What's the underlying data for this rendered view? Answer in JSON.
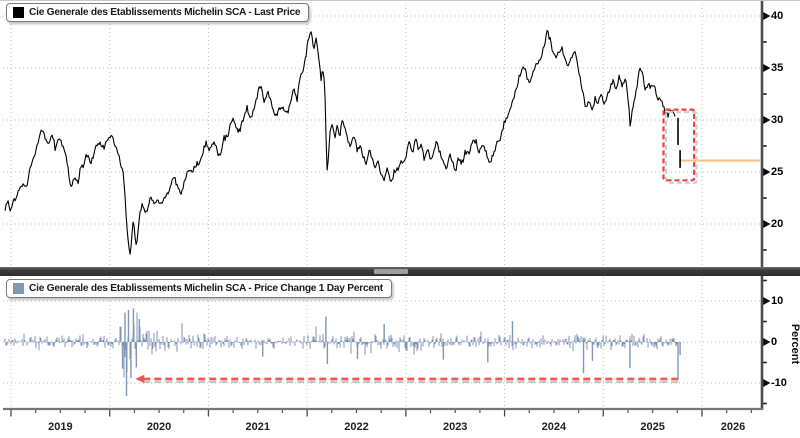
{
  "top_panel": {
    "legend_label": "Cie Generale des Etablissements Michelin SCA - Last Price",
    "swatch_color": "#000000"
  },
  "bottom_panel": {
    "legend_label": "Cie Generale des Etablissements Michelin SCA - Price Change 1 Day Percent",
    "swatch_color": "#7f96b5",
    "axis_title": "Percent"
  },
  "x_axis": {
    "year_labels": [
      "2019",
      "2020",
      "2021",
      "2022",
      "2023",
      "2024",
      "2025",
      "2026"
    ],
    "minor_tick_interval_years": 0.25
  },
  "chart_data": [
    {
      "type": "line",
      "name": "Cie Generale des Etablissements Michelin SCA - Last Price",
      "color": "#000000",
      "x_unit": "decimal_year",
      "x_range": [
        2018.94,
        2026.62
      ],
      "ylim": [
        18.4,
        40.8
      ],
      "y_ticks": [
        40,
        35,
        30,
        25,
        20
      ],
      "minor_y_ticks": [
        37.5,
        32.5,
        27.5,
        22.5,
        17.5
      ],
      "grid": "dotted",
      "noise_amplitude": 0.45,
      "last_price": 26.1,
      "anchors": [
        [
          2018.94,
          21.4
        ],
        [
          2018.97,
          21.9
        ],
        [
          2018.99,
          20.9
        ],
        [
          2019.03,
          22.4
        ],
        [
          2019.09,
          23.6
        ],
        [
          2019.13,
          24.2
        ],
        [
          2019.16,
          23.6
        ],
        [
          2019.2,
          25.3
        ],
        [
          2019.25,
          27.0
        ],
        [
          2019.3,
          29.3
        ],
        [
          2019.33,
          28.3
        ],
        [
          2019.37,
          27.3
        ],
        [
          2019.42,
          28.8
        ],
        [
          2019.45,
          27.6
        ],
        [
          2019.48,
          28.4
        ],
        [
          2019.52,
          27.5
        ],
        [
          2019.56,
          26.2
        ],
        [
          2019.6,
          23.9
        ],
        [
          2019.64,
          24.7
        ],
        [
          2019.68,
          23.9
        ],
        [
          2019.72,
          25.6
        ],
        [
          2019.76,
          26.7
        ],
        [
          2019.8,
          26.1
        ],
        [
          2019.85,
          27.4
        ],
        [
          2019.9,
          28.2
        ],
        [
          2019.94,
          27.6
        ],
        [
          2019.98,
          27.9
        ],
        [
          2020.02,
          28.4
        ],
        [
          2020.06,
          27.8
        ],
        [
          2020.1,
          26.6
        ],
        [
          2020.14,
          24.5
        ],
        [
          2020.17,
          20.0
        ],
        [
          2020.21,
          16.6
        ],
        [
          2020.24,
          20.5
        ],
        [
          2020.27,
          17.9
        ],
        [
          2020.3,
          20.8
        ],
        [
          2020.33,
          22.3
        ],
        [
          2020.37,
          21.5
        ],
        [
          2020.41,
          22.8
        ],
        [
          2020.45,
          21.8
        ],
        [
          2020.49,
          22.6
        ],
        [
          2020.53,
          21.9
        ],
        [
          2020.57,
          22.8
        ],
        [
          2020.61,
          23.8
        ],
        [
          2020.65,
          24.6
        ],
        [
          2020.69,
          23.2
        ],
        [
          2020.72,
          22.5
        ],
        [
          2020.76,
          24.3
        ],
        [
          2020.8,
          25.6
        ],
        [
          2020.84,
          25.1
        ],
        [
          2020.88,
          26.0
        ],
        [
          2020.92,
          26.4
        ],
        [
          2020.97,
          27.5
        ],
        [
          2021.01,
          26.9
        ],
        [
          2021.05,
          27.7
        ],
        [
          2021.09,
          26.6
        ],
        [
          2021.13,
          27.4
        ],
        [
          2021.17,
          27.9
        ],
        [
          2021.21,
          28.9
        ],
        [
          2021.26,
          29.9
        ],
        [
          2021.3,
          29.2
        ],
        [
          2021.35,
          30.4
        ],
        [
          2021.39,
          31.3
        ],
        [
          2021.43,
          30.2
        ],
        [
          2021.47,
          31.4
        ],
        [
          2021.51,
          32.6
        ],
        [
          2021.54,
          33.1
        ],
        [
          2021.57,
          31.9
        ],
        [
          2021.6,
          32.5
        ],
        [
          2021.63,
          31.4
        ],
        [
          2021.67,
          30.2
        ],
        [
          2021.72,
          30.9
        ],
        [
          2021.76,
          31.6
        ],
        [
          2021.8,
          30.6
        ],
        [
          2021.84,
          31.9
        ],
        [
          2021.87,
          33.2
        ],
        [
          2021.9,
          32.1
        ],
        [
          2021.94,
          34.1
        ],
        [
          2021.98,
          35.6
        ],
        [
          2022.01,
          37.1
        ],
        [
          2022.04,
          38.4
        ],
        [
          2022.07,
          37.0
        ],
        [
          2022.09,
          37.8
        ],
        [
          2022.12,
          35.8
        ],
        [
          2022.14,
          34.3
        ],
        [
          2022.16,
          35.1
        ],
        [
          2022.18,
          32.8
        ],
        [
          2022.2,
          24.9
        ],
        [
          2022.23,
          28.6
        ],
        [
          2022.26,
          29.4
        ],
        [
          2022.28,
          28.1
        ],
        [
          2022.3,
          29.6
        ],
        [
          2022.33,
          28.4
        ],
        [
          2022.35,
          29.8
        ],
        [
          2022.38,
          28.9
        ],
        [
          2022.41,
          28.1
        ],
        [
          2022.44,
          26.9
        ],
        [
          2022.47,
          28.2
        ],
        [
          2022.51,
          26.7
        ],
        [
          2022.54,
          27.7
        ],
        [
          2022.57,
          26.3
        ],
        [
          2022.6,
          25.9
        ],
        [
          2022.63,
          27.3
        ],
        [
          2022.66,
          26.7
        ],
        [
          2022.69,
          25.0
        ],
        [
          2022.72,
          25.9
        ],
        [
          2022.75,
          24.9
        ],
        [
          2022.78,
          23.9
        ],
        [
          2022.81,
          24.9
        ],
        [
          2022.84,
          24.3
        ],
        [
          2022.88,
          25.4
        ],
        [
          2022.92,
          25.1
        ],
        [
          2022.96,
          26.1
        ],
        [
          2023.0,
          26.3
        ],
        [
          2023.04,
          27.8
        ],
        [
          2023.07,
          27.1
        ],
        [
          2023.1,
          27.9
        ],
        [
          2023.13,
          26.9
        ],
        [
          2023.16,
          27.6
        ],
        [
          2023.19,
          26.6
        ],
        [
          2023.22,
          27.3
        ],
        [
          2023.25,
          26.4
        ],
        [
          2023.28,
          27.1
        ],
        [
          2023.31,
          27.7
        ],
        [
          2023.35,
          26.9
        ],
        [
          2023.38,
          26.1
        ],
        [
          2023.41,
          25.4
        ],
        [
          2023.44,
          26.3
        ],
        [
          2023.47,
          25.7
        ],
        [
          2023.5,
          25.2
        ],
        [
          2023.53,
          26.1
        ],
        [
          2023.56,
          25.6
        ],
        [
          2023.59,
          26.6
        ],
        [
          2023.62,
          27.4
        ],
        [
          2023.65,
          26.9
        ],
        [
          2023.68,
          27.6
        ],
        [
          2023.71,
          28.1
        ],
        [
          2023.74,
          27.3
        ],
        [
          2023.77,
          27.9
        ],
        [
          2023.8,
          27.1
        ],
        [
          2023.83,
          26.3
        ],
        [
          2023.86,
          25.7
        ],
        [
          2023.89,
          26.6
        ],
        [
          2023.92,
          27.6
        ],
        [
          2023.95,
          28.4
        ],
        [
          2023.99,
          29.3
        ],
        [
          2024.02,
          30.1
        ],
        [
          2024.05,
          31.0
        ],
        [
          2024.08,
          32.2
        ],
        [
          2024.12,
          33.4
        ],
        [
          2024.16,
          34.3
        ],
        [
          2024.2,
          34.9
        ],
        [
          2024.24,
          33.9
        ],
        [
          2024.28,
          34.6
        ],
        [
          2024.32,
          35.4
        ],
        [
          2024.36,
          36.3
        ],
        [
          2024.4,
          37.3
        ],
        [
          2024.43,
          38.2
        ],
        [
          2024.46,
          37.6
        ],
        [
          2024.49,
          36.4
        ],
        [
          2024.52,
          35.6
        ],
        [
          2024.55,
          36.8
        ],
        [
          2024.58,
          37.4
        ],
        [
          2024.61,
          36.2
        ],
        [
          2024.64,
          35.1
        ],
        [
          2024.67,
          35.9
        ],
        [
          2024.71,
          36.7
        ],
        [
          2024.74,
          35.3
        ],
        [
          2024.77,
          33.9
        ],
        [
          2024.8,
          32.4
        ],
        [
          2024.83,
          31.2
        ],
        [
          2024.86,
          31.8
        ],
        [
          2024.89,
          31.1
        ],
        [
          2024.92,
          32.1
        ],
        [
          2024.95,
          31.4
        ],
        [
          2024.98,
          32.2
        ],
        [
          2025.01,
          31.6
        ],
        [
          2025.04,
          32.4
        ],
        [
          2025.07,
          33.1
        ],
        [
          2025.1,
          33.6
        ],
        [
          2025.13,
          32.9
        ],
        [
          2025.16,
          33.9
        ],
        [
          2025.19,
          33.3
        ],
        [
          2025.22,
          34.2
        ],
        [
          2025.25,
          32.3
        ],
        [
          2025.27,
          29.6
        ],
        [
          2025.3,
          31.4
        ],
        [
          2025.33,
          32.9
        ],
        [
          2025.36,
          34.3
        ],
        [
          2025.38,
          34.9
        ],
        [
          2025.41,
          34.1
        ],
        [
          2025.43,
          33.4
        ],
        [
          2025.46,
          34.0
        ],
        [
          2025.49,
          32.9
        ],
        [
          2025.52,
          33.4
        ],
        [
          2025.55,
          32.1
        ],
        [
          2025.58,
          32.5
        ],
        [
          2025.61,
          31.4
        ],
        [
          2025.64,
          30.9
        ],
        [
          2025.67,
          31.3
        ],
        [
          2025.7,
          30.6
        ],
        [
          2025.73,
          30.8
        ]
      ],
      "gap_bars": [
        {
          "t": 2025.757,
          "high": 30.2,
          "low": 27.6
        },
        {
          "t": 2025.778,
          "high": 27.1,
          "low": 25.4
        }
      ],
      "annotations": {
        "highlight_box": {
          "t_from": 2025.61,
          "t_to": 2025.92,
          "price_top": 31.0,
          "price_bottom": 24.2,
          "color": "#ee4238",
          "style": "dashed"
        },
        "last_price_line": {
          "price": 26.1,
          "t_from": 2025.78,
          "color": "#f2c488",
          "style": "solid"
        }
      }
    },
    {
      "type": "bar",
      "name": "Cie Generale des Etablissements Michelin SCA - Price Change 1 Day Percent",
      "color": "#7f96b5",
      "ylabel": "Percent",
      "x_unit": "decimal_year",
      "x_range": [
        2018.94,
        2026.62
      ],
      "ylim": [
        -15.6,
        15.7
      ],
      "y_ticks": [
        10,
        0,
        -10
      ],
      "minor_y_ticks": [
        15,
        5,
        -5,
        -15
      ],
      "grid": "dotted",
      "volatility_profile": [
        {
          "from": 2018.94,
          "to": 2020.1,
          "sigma": 1.0
        },
        {
          "from": 2020.1,
          "to": 2020.33,
          "sigma": 3.6
        },
        {
          "from": 2020.33,
          "to": 2020.62,
          "sigma": 1.7
        },
        {
          "from": 2020.62,
          "to": 2021.0,
          "sigma": 1.2
        },
        {
          "from": 2021.0,
          "to": 2022.0,
          "sigma": 1.0
        },
        {
          "from": 2022.0,
          "to": 2023.2,
          "sigma": 1.4
        },
        {
          "from": 2023.2,
          "to": 2024.5,
          "sigma": 1.0
        },
        {
          "from": 2024.5,
          "to": 2025.45,
          "sigma": 1.1
        },
        {
          "from": 2025.45,
          "to": 2025.74,
          "sigma": 0.9
        }
      ],
      "notable_moves": [
        {
          "t": 2020.13,
          "pct": -6.5
        },
        {
          "t": 2020.155,
          "pct": 7.2
        },
        {
          "t": 2020.17,
          "pct": -13.2
        },
        {
          "t": 2020.19,
          "pct": 7.8
        },
        {
          "t": 2020.215,
          "pct": -8.8
        },
        {
          "t": 2020.24,
          "pct": 8.2
        },
        {
          "t": 2020.27,
          "pct": -6.2
        },
        {
          "t": 2020.3,
          "pct": 5.6
        },
        {
          "t": 2021.55,
          "pct": -3.6
        },
        {
          "t": 2022.19,
          "pct": 6.2
        },
        {
          "t": 2022.205,
          "pct": -5.4
        },
        {
          "t": 2022.51,
          "pct": -4.1
        },
        {
          "t": 2022.78,
          "pct": 4.4
        },
        {
          "t": 2023.38,
          "pct": -4.3
        },
        {
          "t": 2023.83,
          "pct": -5.0
        },
        {
          "t": 2024.08,
          "pct": 5.1
        },
        {
          "t": 2024.8,
          "pct": -7.6
        },
        {
          "t": 2024.89,
          "pct": -4.6
        },
        {
          "t": 2025.27,
          "pct": -6.4
        },
        {
          "t": 2025.757,
          "pct": -9.0
        },
        {
          "t": 2025.778,
          "pct": -3.2
        }
      ],
      "reference_line": {
        "level": -9,
        "t_from": 2020.34,
        "t_to": 2025.78,
        "color": "#f4574d",
        "style": "dashed",
        "arrow": "left"
      }
    }
  ]
}
